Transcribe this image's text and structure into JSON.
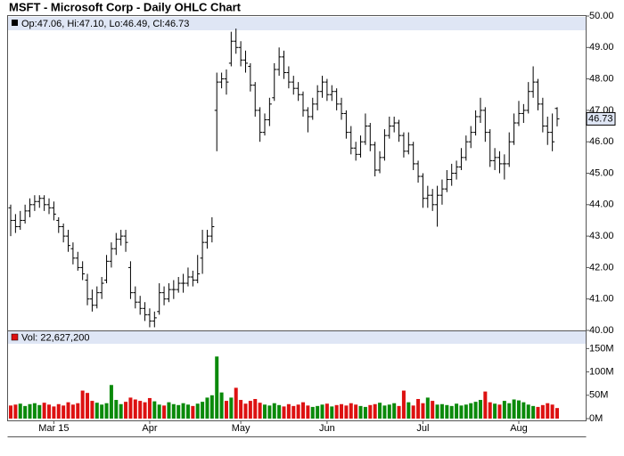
{
  "chart_data": {
    "type": "ohlc",
    "title": "MSFT - Microsoft Corp - Daily OHLC Chart",
    "price_legend": "Op:47.06, Hi:47.10, Lo:46.49, Cl:46.73",
    "last_label": "46.73",
    "bar_color": "#000000",
    "categories": [
      null,
      null,
      null,
      null,
      null,
      null,
      null,
      null,
      null,
      "Mar 15",
      null,
      null,
      null,
      null,
      null,
      null,
      null,
      null,
      null,
      null,
      null,
      null,
      null,
      null,
      null,
      null,
      null,
      null,
      null,
      "Apr",
      null,
      null,
      null,
      null,
      null,
      null,
      null,
      null,
      null,
      null,
      null,
      null,
      null,
      null,
      null,
      null,
      null,
      null,
      "May",
      null,
      null,
      null,
      null,
      null,
      null,
      null,
      null,
      null,
      null,
      null,
      null,
      null,
      null,
      null,
      null,
      null,
      "Jun",
      null,
      null,
      null,
      null,
      null,
      null,
      null,
      null,
      null,
      null,
      null,
      null,
      null,
      null,
      null,
      null,
      null,
      null,
      null,
      "Jul",
      null,
      null,
      null,
      null,
      null,
      null,
      null,
      null,
      null,
      null,
      null,
      null,
      null,
      null,
      null,
      null,
      null,
      null,
      null,
      "Aug",
      null,
      null,
      null,
      null,
      null,
      null,
      null,
      null
    ],
    "ohlc": [
      [
        43.9,
        44.0,
        43.0,
        43.5
      ],
      [
        43.5,
        43.7,
        43.1,
        43.3
      ],
      [
        43.3,
        43.8,
        43.2,
        43.5
      ],
      [
        43.5,
        44.0,
        43.4,
        43.8
      ],
      [
        43.8,
        44.2,
        43.6,
        44.0
      ],
      [
        44.0,
        44.3,
        43.8,
        44.1
      ],
      [
        44.1,
        44.3,
        43.9,
        44.2
      ],
      [
        44.2,
        44.3,
        43.8,
        44.0
      ],
      [
        44.0,
        44.2,
        43.7,
        43.9
      ],
      [
        43.9,
        44.1,
        43.5,
        43.7
      ],
      [
        43.5,
        43.6,
        43.1,
        43.3
      ],
      [
        43.3,
        43.4,
        42.8,
        43.0
      ],
      [
        43.0,
        43.2,
        42.5,
        42.7
      ],
      [
        42.6,
        42.8,
        42.1,
        42.3
      ],
      [
        42.3,
        42.5,
        41.9,
        42.0
      ],
      [
        42.0,
        42.2,
        41.6,
        41.8
      ],
      [
        41.6,
        41.8,
        40.8,
        41.0
      ],
      [
        41.0,
        41.3,
        40.6,
        40.8
      ],
      [
        40.8,
        41.4,
        40.7,
        41.2
      ],
      [
        41.2,
        41.7,
        41.0,
        41.5
      ],
      [
        41.6,
        42.4,
        41.5,
        42.2
      ],
      [
        42.2,
        42.8,
        42.0,
        42.6
      ],
      [
        42.6,
        43.1,
        42.4,
        42.9
      ],
      [
        42.9,
        43.2,
        42.7,
        43.0
      ],
      [
        43.0,
        43.2,
        42.5,
        42.8
      ],
      [
        42.0,
        42.2,
        41.0,
        41.2
      ],
      [
        41.2,
        41.4,
        40.7,
        40.9
      ],
      [
        40.9,
        41.1,
        40.5,
        40.7
      ],
      [
        40.7,
        40.9,
        40.3,
        40.5
      ],
      [
        40.5,
        40.7,
        40.1,
        40.3
      ],
      [
        40.3,
        40.6,
        40.1,
        40.4
      ],
      [
        40.6,
        41.5,
        40.5,
        41.2
      ],
      [
        41.2,
        41.4,
        40.8,
        41.0
      ],
      [
        41.0,
        41.5,
        40.9,
        41.3
      ],
      [
        41.3,
        41.6,
        41.0,
        41.3
      ],
      [
        41.3,
        41.7,
        41.2,
        41.5
      ],
      [
        41.5,
        41.8,
        41.2,
        41.5
      ],
      [
        41.5,
        42.0,
        41.4,
        41.7
      ],
      [
        41.7,
        41.9,
        41.4,
        41.6
      ],
      [
        41.6,
        42.4,
        41.5,
        41.8
      ],
      [
        42.3,
        43.2,
        41.8,
        42.8
      ],
      [
        42.8,
        43.2,
        42.6,
        43.0
      ],
      [
        43.0,
        43.6,
        42.8,
        43.3
      ],
      [
        47.0,
        48.2,
        45.7,
        47.9
      ],
      [
        47.9,
        48.2,
        47.7,
        48.0
      ],
      [
        48.0,
        48.3,
        47.5,
        47.9
      ],
      [
        48.5,
        49.5,
        48.4,
        49.2
      ],
      [
        49.2,
        49.6,
        48.8,
        49.0
      ],
      [
        49.0,
        49.2,
        48.4,
        48.6
      ],
      [
        48.6,
        48.9,
        48.2,
        48.5
      ],
      [
        48.4,
        48.5,
        47.6,
        47.8
      ],
      [
        47.8,
        47.9,
        46.8,
        47.0
      ],
      [
        47.0,
        47.1,
        46.0,
        46.3
      ],
      [
        46.3,
        46.9,
        46.2,
        46.7
      ],
      [
        46.7,
        47.4,
        46.5,
        47.2
      ],
      [
        47.4,
        48.5,
        47.3,
        48.3
      ],
      [
        48.3,
        49.0,
        48.1,
        48.7
      ],
      [
        48.7,
        48.9,
        48.0,
        48.2
      ],
      [
        48.2,
        48.4,
        47.7,
        47.9
      ],
      [
        47.9,
        48.1,
        47.5,
        47.7
      ],
      [
        47.7,
        47.9,
        47.3,
        47.5
      ],
      [
        47.5,
        47.6,
        46.8,
        47.0
      ],
      [
        47.0,
        47.1,
        46.3,
        46.8
      ],
      [
        46.8,
        47.4,
        46.7,
        47.2
      ],
      [
        47.2,
        47.8,
        47.0,
        47.6
      ],
      [
        47.6,
        48.1,
        47.4,
        47.9
      ],
      [
        47.9,
        48.0,
        47.3,
        47.5
      ],
      [
        47.5,
        47.8,
        47.3,
        47.6
      ],
      [
        47.6,
        47.7,
        47.0,
        47.2
      ],
      [
        47.2,
        47.4,
        46.7,
        46.9
      ],
      [
        46.9,
        47.0,
        46.1,
        46.3
      ],
      [
        46.3,
        46.5,
        45.6,
        45.8
      ],
      [
        45.8,
        46.0,
        45.4,
        45.6
      ],
      [
        45.6,
        46.2,
        45.5,
        46.0
      ],
      [
        46.0,
        46.9,
        45.9,
        46.5
      ],
      [
        46.5,
        46.6,
        45.7,
        45.9
      ],
      [
        45.9,
        46.0,
        44.9,
        45.1
      ],
      [
        45.1,
        45.7,
        45.0,
        45.5
      ],
      [
        45.5,
        46.4,
        45.4,
        46.2
      ],
      [
        46.2,
        46.8,
        46.1,
        46.5
      ],
      [
        46.5,
        46.8,
        46.3,
        46.6
      ],
      [
        46.6,
        46.7,
        46.0,
        46.2
      ],
      [
        46.2,
        46.3,
        45.5,
        45.7
      ],
      [
        45.7,
        46.3,
        45.6,
        45.9
      ],
      [
        45.9,
        46.0,
        45.1,
        45.3
      ],
      [
        45.3,
        45.4,
        44.7,
        44.9
      ],
      [
        44.9,
        45.0,
        43.9,
        44.2
      ],
      [
        44.2,
        44.6,
        43.9,
        44.3
      ],
      [
        44.3,
        44.5,
        43.8,
        44.0
      ],
      [
        44.0,
        44.6,
        43.3,
        44.3
      ],
      [
        44.3,
        44.8,
        44.0,
        44.5
      ],
      [
        44.5,
        45.1,
        44.4,
        44.8
      ],
      [
        44.8,
        45.3,
        44.6,
        45.0
      ],
      [
        45.0,
        45.4,
        44.8,
        45.2
      ],
      [
        45.2,
        45.8,
        45.1,
        45.5
      ],
      [
        45.5,
        46.2,
        45.4,
        46.0
      ],
      [
        46.0,
        46.5,
        45.8,
        46.3
      ],
      [
        46.3,
        47.0,
        46.2,
        46.8
      ],
      [
        46.8,
        47.4,
        46.6,
        47.0
      ],
      [
        47.0,
        47.1,
        46.0,
        46.3
      ],
      [
        46.3,
        46.4,
        45.2,
        45.4
      ],
      [
        45.4,
        45.8,
        45.1,
        45.5
      ],
      [
        45.5,
        45.7,
        45.0,
        45.3
      ],
      [
        45.3,
        45.6,
        44.8,
        45.3
      ],
      [
        45.3,
        46.3,
        45.2,
        46.0
      ],
      [
        46.0,
        46.9,
        45.9,
        46.6
      ],
      [
        46.6,
        47.3,
        46.5,
        46.9
      ],
      [
        46.9,
        47.2,
        46.6,
        47.0
      ],
      [
        47.0,
        47.9,
        46.9,
        47.6
      ],
      [
        47.6,
        48.4,
        47.4,
        47.9
      ],
      [
        47.9,
        48.0,
        47.0,
        47.2
      ],
      [
        47.2,
        47.4,
        46.3,
        46.5
      ],
      [
        46.5,
        46.8,
        45.9,
        46.3
      ],
      [
        46.3,
        46.9,
        45.7,
        46.0
      ],
      [
        47.06,
        47.1,
        46.49,
        46.73
      ]
    ],
    "ylim": [
      40,
      50
    ],
    "yticks": [
      {
        "value": 40,
        "label": "40.00"
      },
      {
        "value": 41,
        "label": "41.00"
      },
      {
        "value": 42,
        "label": "42.00"
      },
      {
        "value": 43,
        "label": "43.00"
      },
      {
        "value": 44,
        "label": "44.00"
      },
      {
        "value": 45,
        "label": "45.00"
      },
      {
        "value": 46,
        "label": "46.00"
      },
      {
        "value": 47,
        "label": "47.00"
      },
      {
        "value": 48,
        "label": "48.00"
      },
      {
        "value": 49,
        "label": "49.00"
      },
      {
        "value": 50,
        "label": "50.00"
      }
    ],
    "volume": {
      "legend": "Vol: 22,627,200",
      "up_color": "#0a8a0a",
      "down_color": "#dd1111",
      "values": [
        28,
        30,
        32,
        27,
        31,
        33,
        29,
        34,
        30,
        26,
        31,
        28,
        35,
        30,
        33,
        60,
        55,
        38,
        34,
        30,
        33,
        72,
        40,
        31,
        36,
        45,
        41,
        38,
        35,
        44,
        37,
        30,
        28,
        35,
        31,
        29,
        33,
        30,
        27,
        32,
        36,
        45,
        50,
        133,
        56,
        38,
        45,
        66,
        40,
        32,
        38,
        42,
        34,
        30,
        28,
        33,
        29,
        26,
        31,
        27,
        30,
        35,
        28,
        25,
        27,
        30,
        32,
        26,
        29,
        31,
        28,
        33,
        30,
        27,
        25,
        29,
        31,
        34,
        28,
        30,
        33,
        27,
        60,
        35,
        28,
        42,
        33,
        45,
        38,
        30,
        31,
        29,
        27,
        32,
        28,
        30,
        33,
        36,
        40,
        58,
        35,
        32,
        30,
        38,
        33,
        41,
        39,
        35,
        30,
        27,
        25,
        29,
        33,
        30,
        22.6
      ],
      "ylim": [
        0,
        187
      ],
      "yticks": [
        {
          "value": 0,
          "label": "0M"
        },
        {
          "value": 50,
          "label": "50M"
        },
        {
          "value": 100,
          "label": "100M"
        },
        {
          "value": 150,
          "label": "150M"
        }
      ]
    }
  }
}
